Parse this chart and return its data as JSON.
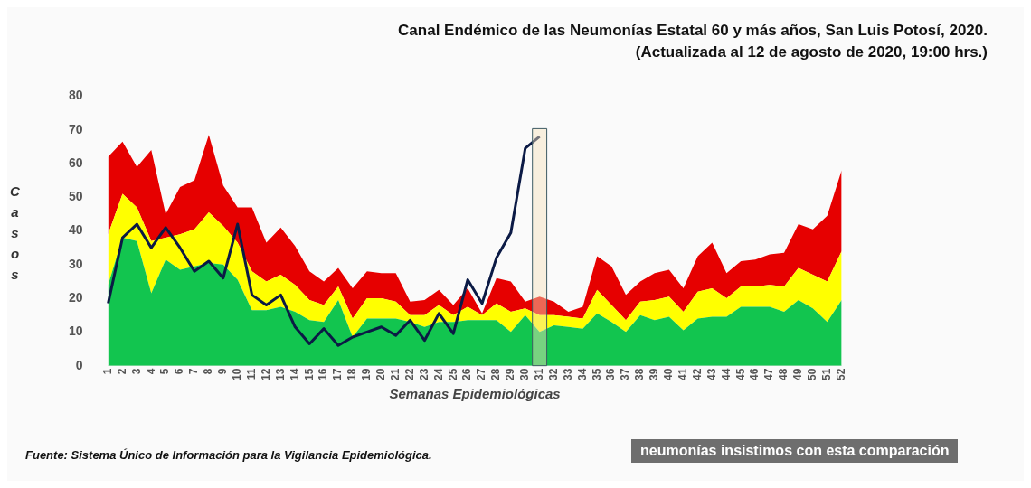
{
  "chart_data": {
    "type": "area",
    "stacked": true,
    "title": "Canal Endémico de las Neumonías Estatal 60 y más años, San Luis Potosí, 2020.",
    "subtitle": "(Actualizada al 12 de agosto de 2020, 19:00 hrs.)",
    "xlabel": "Semanas Epidemiológicas",
    "ylabel": "Casos",
    "categories": [
      "1",
      "2",
      "3",
      "4",
      "5",
      "6",
      "7",
      "8",
      "9",
      "10",
      "11",
      "12",
      "13",
      "14",
      "15",
      "16",
      "17",
      "18",
      "19",
      "20",
      "21",
      "22",
      "23",
      "24",
      "25",
      "26",
      "27",
      "28",
      "29",
      "30",
      "31",
      "32",
      "33",
      "34",
      "35",
      "36",
      "37",
      "38",
      "39",
      "40",
      "41",
      "42",
      "43",
      "44",
      "45",
      "46",
      "47",
      "48",
      "49",
      "50",
      "51",
      "52"
    ],
    "series": [
      {
        "color": "#12c54f",
        "values": [
          24,
          38,
          37,
          21.5,
          31.5,
          28.5,
          29.5,
          30.5,
          30,
          25.5,
          16.5,
          16.5,
          17.5,
          16,
          13.5,
          13,
          19.5,
          8.5,
          14,
          14,
          14,
          13,
          11.5,
          13,
          13,
          13.5,
          13.5,
          13.5,
          10,
          15,
          10,
          12,
          11.5,
          11,
          15.5,
          13,
          10,
          15,
          13.5,
          14.5,
          10.5,
          14,
          14.5,
          14.5,
          17.5,
          17.5,
          17.5,
          16,
          19.5,
          17,
          13,
          19.5
        ]
      },
      {
        "color": "#ffff00",
        "values": [
          15,
          13,
          10,
          15.5,
          6.5,
          10.5,
          11,
          15,
          11.5,
          11,
          11.5,
          8.5,
          9.5,
          8,
          6,
          5,
          4,
          5.5,
          6,
          6,
          5,
          2,
          3.5,
          5,
          2,
          4,
          1.5,
          5,
          6,
          2,
          5,
          3,
          3,
          3,
          7,
          5,
          3.5,
          4,
          6,
          6,
          5.5,
          8,
          8.5,
          5.5,
          6,
          6,
          6.5,
          7.5,
          9.5,
          10,
          12,
          14.5
        ]
      },
      {
        "color": "#e60000",
        "values": [
          23,
          15.5,
          12,
          27,
          7,
          14,
          14.5,
          23,
          12,
          10.5,
          19,
          11.5,
          14,
          11.5,
          8.5,
          7,
          5.5,
          9,
          8,
          7.5,
          8.5,
          4,
          4.5,
          4.5,
          3,
          5.5,
          0.5,
          7.5,
          9,
          2,
          5.5,
          4,
          1.5,
          3.5,
          10,
          11.5,
          7.5,
          6,
          8,
          8,
          7,
          10.5,
          13.5,
          7.5,
          7.5,
          8,
          9,
          10,
          13,
          13.5,
          19.5,
          24
        ]
      },
      {
        "type": "line",
        "color": "#0b1a45",
        "values": [
          18.5,
          38,
          42,
          35,
          41,
          35,
          28,
          31,
          26,
          42,
          21,
          18,
          21,
          11.5,
          6.5,
          11,
          6,
          8.5,
          10,
          11.5,
          9,
          13.5,
          7.5,
          15.5,
          9.5,
          25.5,
          18.5,
          32,
          39.5,
          64.5,
          68,
          null,
          null,
          null,
          null,
          null,
          null,
          null,
          null,
          null,
          null,
          null,
          null,
          null,
          null,
          null,
          null,
          null,
          null,
          null,
          null,
          null
        ]
      }
    ],
    "ylim": [
      0,
      80
    ],
    "yticks": [
      0,
      10,
      20,
      30,
      40,
      50,
      60,
      70,
      80
    ],
    "grid": false,
    "bands": [
      {
        "axis": "x",
        "from": "31",
        "to": "31",
        "color": "#f6e3bd"
      }
    ],
    "annotations": [
      "Fuente: Sistema Único de Información para la Vigilancia Epidemiológica.",
      "neumonías insistimos con esta comparación"
    ]
  }
}
